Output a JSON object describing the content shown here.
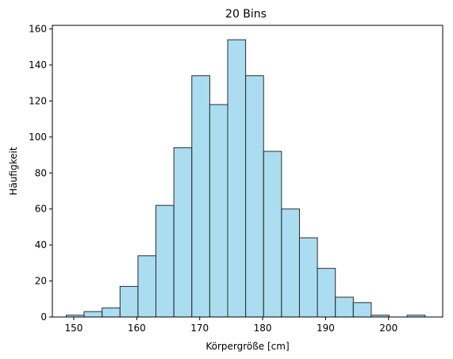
{
  "chart_data": {
    "type": "bar",
    "title": "20 Bins",
    "xlabel": "Körpergröße [cm]",
    "ylabel": "Häufigkeit",
    "xlim": [
      146.6,
      208.6
    ],
    "ylim": [
      0,
      162
    ],
    "xticks": [
      150,
      160,
      170,
      180,
      190,
      200
    ],
    "yticks": [
      0,
      20,
      40,
      60,
      80,
      100,
      120,
      140,
      160
    ],
    "bin_start": 148.8,
    "bin_width": 2.85,
    "values": [
      1,
      3,
      5,
      17,
      34,
      62,
      94,
      134,
      118,
      154,
      134,
      92,
      60,
      44,
      27,
      11,
      8,
      1,
      0,
      1
    ],
    "bar_color": "#87ceeb",
    "bar_alpha": 0.7,
    "edge_color": "#2b2b2b",
    "grid": false,
    "legend": "none"
  }
}
